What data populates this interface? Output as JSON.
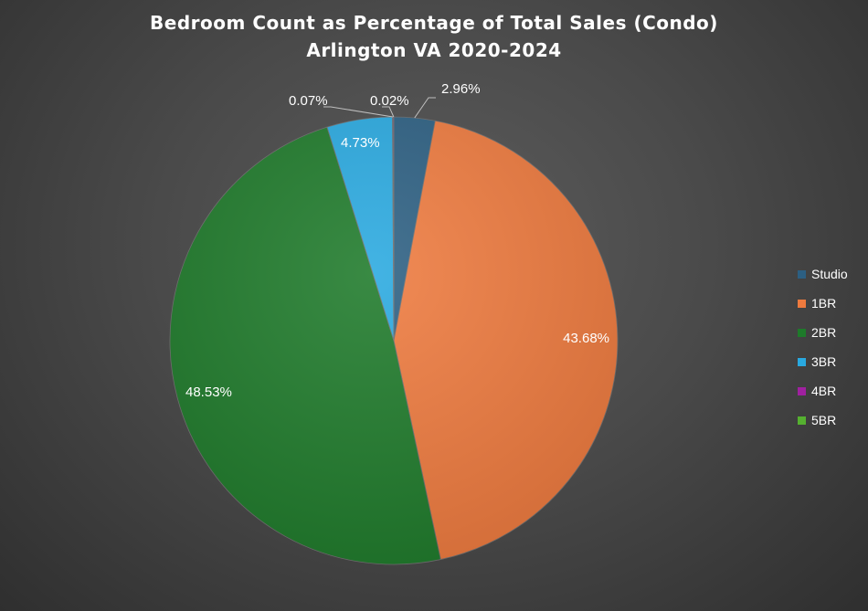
{
  "chart_data": {
    "type": "pie",
    "title_lines": [
      "Bedroom Count as Percentage of Total Sales (Condo)",
      "Arlington VA 2020-2024"
    ],
    "categories": [
      "Studio",
      "1BR",
      "2BR",
      "3BR",
      "4BR",
      "5BR"
    ],
    "values": [
      2.96,
      43.68,
      48.53,
      4.73,
      0.07,
      0.02
    ],
    "data_labels": [
      "2.96%",
      "43.68%",
      "48.53%",
      "4.73%",
      "0.07%",
      "0.02%"
    ],
    "colors": [
      "#2c5f82",
      "#ee7a3e",
      "#1e7a2a",
      "#29a9e0",
      "#a020a0",
      "#55b030"
    ],
    "legend": {
      "placement": "right",
      "entries": [
        "Studio",
        "1BR",
        "2BR",
        "3BR",
        "4BR",
        "5BR"
      ]
    },
    "start_angle_deg": 0,
    "direction": "clockwise"
  }
}
